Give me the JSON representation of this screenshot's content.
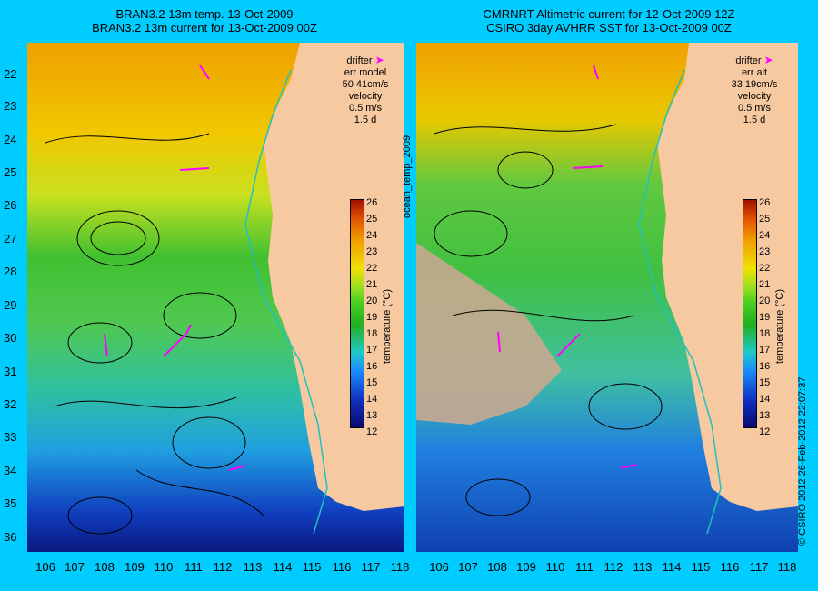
{
  "titles": {
    "left_line1": "BRAN3.2 13m temp. 13-Oct-2009",
    "left_line2": "BRAN3.2 13m current for 13-Oct-2009 00Z",
    "right_line1": "CMRNRT Altimetric current for 12-Oct-2009 12Z",
    "right_line2": "CSIRO 3day AVHRR SST for 13-Oct-2009 00Z"
  },
  "legend_left": {
    "drifter": "drifter",
    "err_label": "err model",
    "err_value": "50 41cm/s",
    "velocity": "velocity",
    "vel_value": "0.5 m/s",
    "vel_days": "1.5 d"
  },
  "legend_right": {
    "drifter": "drifter",
    "err_label": "err alt",
    "err_value": "33 19cm/s",
    "velocity": "velocity",
    "vel_value": "0.5 m/s",
    "vel_days": "1.5 d"
  },
  "colorbar": {
    "label": "temperature (°C)",
    "ticks": [
      "26",
      "25",
      "24",
      "23",
      "22",
      "21",
      "20",
      "19",
      "18",
      "17",
      "16",
      "15",
      "14",
      "13",
      "12"
    ]
  },
  "side_text": {
    "middle": "ocean_temp_2009",
    "right": "© CSIRO 2012   26-Feb-2012 22:07:37"
  },
  "axes": {
    "lat_labels": [
      "22",
      "23",
      "24",
      "25",
      "26",
      "27",
      "28",
      "29",
      "30",
      "31",
      "32",
      "33",
      "34",
      "35",
      "36"
    ],
    "lon_labels": [
      "106",
      "107",
      "108",
      "109",
      "110",
      "111",
      "112",
      "113",
      "114",
      "115",
      "116",
      "117",
      "118"
    ]
  },
  "colors": {
    "background": "#00ccff",
    "land": "#f7c9a0",
    "drifter": "#ff00ff",
    "shelf_line": "#20c0c0"
  }
}
